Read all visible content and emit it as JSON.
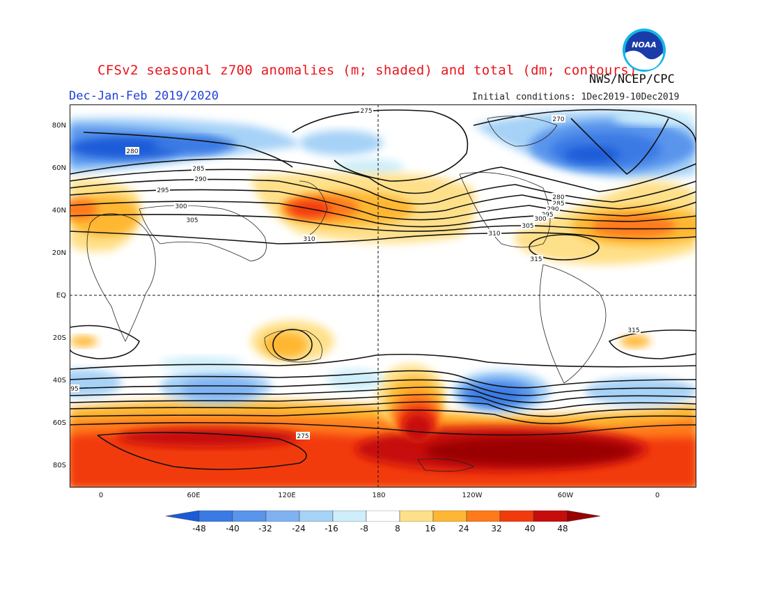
{
  "header": {
    "title": "CFSv2 seasonal z700 anomalies (m; shaded) and total (dm; contours)",
    "agency": "NWS/NCEP/CPC",
    "season": "Dec-Jan-Feb 2019/2020",
    "initial_conditions": "Initial conditions: 1Dec2019-10Dec2019",
    "logo_text": "NOAA"
  },
  "map": {
    "lat_labels": [
      "80N",
      "60N",
      "40N",
      "20N",
      "EQ",
      "20S",
      "40S",
      "60S",
      "80S"
    ],
    "lon_labels": [
      "0",
      "60E",
      "120E",
      "180",
      "120W",
      "60W",
      "0"
    ],
    "contour_labels": [
      "275",
      "270",
      "280",
      "285",
      "290",
      "295",
      "300",
      "305",
      "310",
      "315",
      "275",
      "280",
      "285",
      "290",
      "295",
      "300",
      "305",
      "310",
      "315",
      "95"
    ]
  },
  "colorbar": {
    "labels": [
      "-48",
      "-40",
      "-32",
      "-24",
      "-16",
      "-8",
      "8",
      "16",
      "24",
      "32",
      "40",
      "48"
    ],
    "colors": [
      "#1a5cd8",
      "#3a7ae4",
      "#5a95ec",
      "#7fb2f3",
      "#a6d2f7",
      "#cdeefa",
      "#ffffff",
      "#ffe08a",
      "#ffb733",
      "#ff7a1a",
      "#f23b0c",
      "#c70c0c",
      "#9a0000"
    ]
  },
  "colors": {
    "title": "#e8141b",
    "season": "#1f3fd9"
  }
}
